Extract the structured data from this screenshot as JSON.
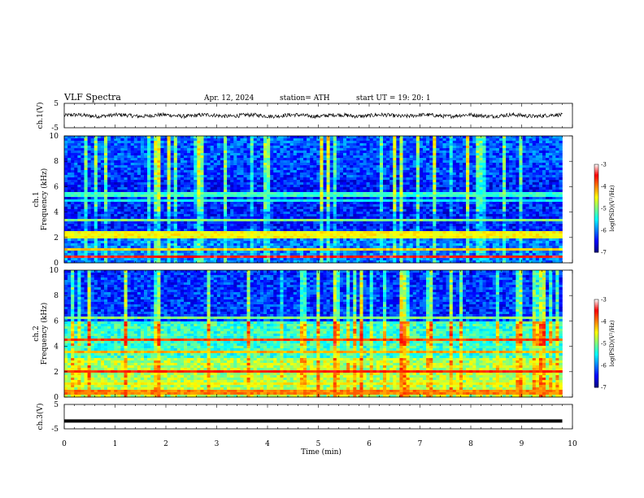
{
  "header": {
    "title": "VLF  Spectra",
    "date": "Apr. 12, 2024",
    "station": "station= ATH",
    "start": "start  UT  =    19: 20: 1"
  },
  "chart_data": [
    {
      "id": "ch1-waveform",
      "type": "line",
      "ylabel": "ch.1(V)",
      "ylim": [
        -5,
        5
      ],
      "yticks": [
        {
          "value": 5,
          "label": "5"
        },
        {
          "value": -5,
          "label": "-5"
        }
      ],
      "xlim": [
        0,
        10
      ],
      "approx_level": 0,
      "approx_amplitude": 1,
      "data_end": 9.8
    },
    {
      "id": "ch1-spectrogram",
      "type": "heatmap",
      "ylabel": "ch.1\nFrequency  (kHz)",
      "ylim": [
        0,
        10
      ],
      "yticks": [
        "0",
        "2",
        "4",
        "6",
        "8",
        "10"
      ],
      "xlim": [
        0,
        10
      ],
      "data_end": 9.8,
      "colorbar": {
        "label": "log(PSD)(V²/Hz)",
        "range": [
          -7,
          -3
        ],
        "ticks": [
          "-3",
          "-4",
          "-5",
          "-6",
          "-7"
        ]
      },
      "bands": [
        {
          "freq": 0.5,
          "level": -3.5
        },
        {
          "freq": 1.0,
          "level": -4.3
        },
        {
          "freq": 2.0,
          "level": -4.5
        },
        {
          "freq": 2.3,
          "level": -4.5
        },
        {
          "freq": 3.3,
          "level": -5.0
        },
        {
          "freq": 4.9,
          "level": -5.5
        },
        {
          "freq": 5.4,
          "level": -5.3
        }
      ]
    },
    {
      "id": "ch2-spectrogram",
      "type": "heatmap",
      "ylabel": "ch.2\nFrequency  (kHz)",
      "ylim": [
        0,
        10
      ],
      "yticks": [
        "0",
        "2",
        "4",
        "6",
        "8",
        "10"
      ],
      "xlim": [
        0,
        10
      ],
      "data_end": 9.8,
      "colorbar": {
        "label": "log(PSD)(V²/Hz)",
        "range": [
          -7,
          -3
        ],
        "ticks": [
          "-3",
          "-4",
          "-5",
          "-6",
          "-7"
        ]
      },
      "bands": [
        {
          "freq": 0.4,
          "level": -4.0
        },
        {
          "freq": 1.0,
          "level": -4.5
        },
        {
          "freq": 2.0,
          "level": -3.6
        },
        {
          "freq": 3.5,
          "level": -4.2
        },
        {
          "freq": 4.5,
          "level": -3.8
        },
        {
          "freq": 6.2,
          "level": -5.0
        }
      ]
    },
    {
      "id": "ch3-waveform",
      "type": "line",
      "ylabel": "ch.3(V)",
      "ylim": [
        -5,
        5
      ],
      "yticks": [
        {
          "value": 5,
          "label": "5"
        },
        {
          "value": -5,
          "label": "-5"
        }
      ],
      "xlim": [
        0,
        10
      ],
      "approx_level": -1.8,
      "approx_amplitude": 0.2,
      "data_end": 9.8
    }
  ],
  "xaxis": {
    "label": "Time  (min)",
    "ticks": [
      "0",
      "1",
      "2",
      "3",
      "4",
      "5",
      "6",
      "7",
      "8",
      "9",
      "10"
    ]
  },
  "colors": {
    "line": "#000000",
    "cmap": [
      "#000080",
      "#0000ff",
      "#0080ff",
      "#00ffff",
      "#80ff80",
      "#ffff00",
      "#ff8000",
      "#ff0000",
      "#ffffff"
    ]
  }
}
